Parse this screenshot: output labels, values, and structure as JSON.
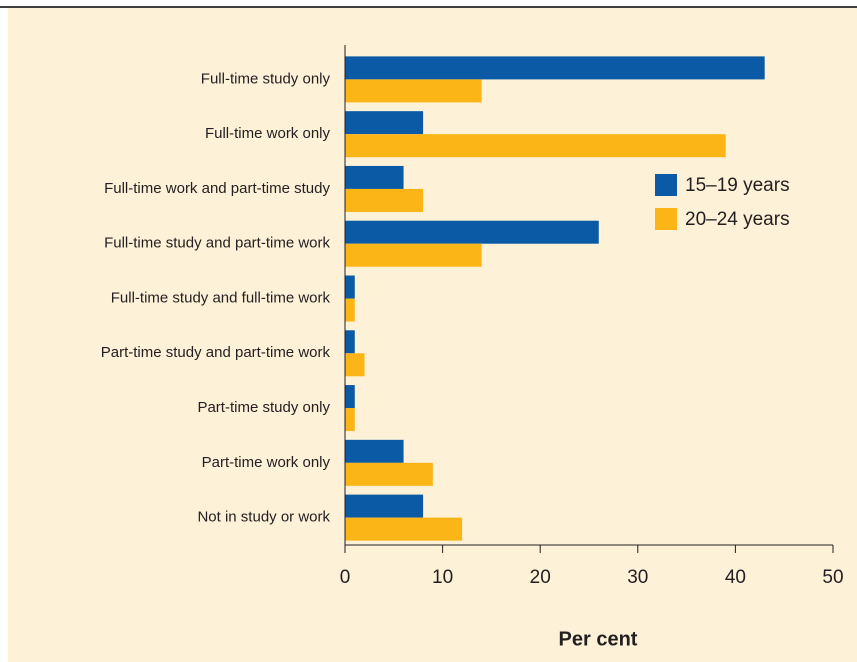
{
  "chart_data": {
    "type": "bar",
    "orientation": "horizontal",
    "categories": [
      "Full-time study only",
      "Full-time work only",
      "Full-time work and part-time study",
      "Full-time study and part-time work",
      "Full-time study and full-time work",
      "Part-time study and part-time work",
      "Part-time study only",
      "Part-time work only",
      "Not in study or work"
    ],
    "series": [
      {
        "name": "15–19 years",
        "color": "#0a5aa5",
        "values": [
          43,
          8,
          6,
          26,
          1,
          1,
          1,
          6,
          8
        ]
      },
      {
        "name": "20–24 years",
        "color": "#fbb516",
        "values": [
          14,
          39,
          8,
          14,
          1,
          2,
          1,
          9,
          12
        ]
      }
    ],
    "xlabel": "Per cent",
    "xlim": [
      0,
      50
    ],
    "xticks": [
      0,
      10,
      20,
      30,
      40,
      50
    ],
    "grid": false,
    "legend": "upper right"
  }
}
